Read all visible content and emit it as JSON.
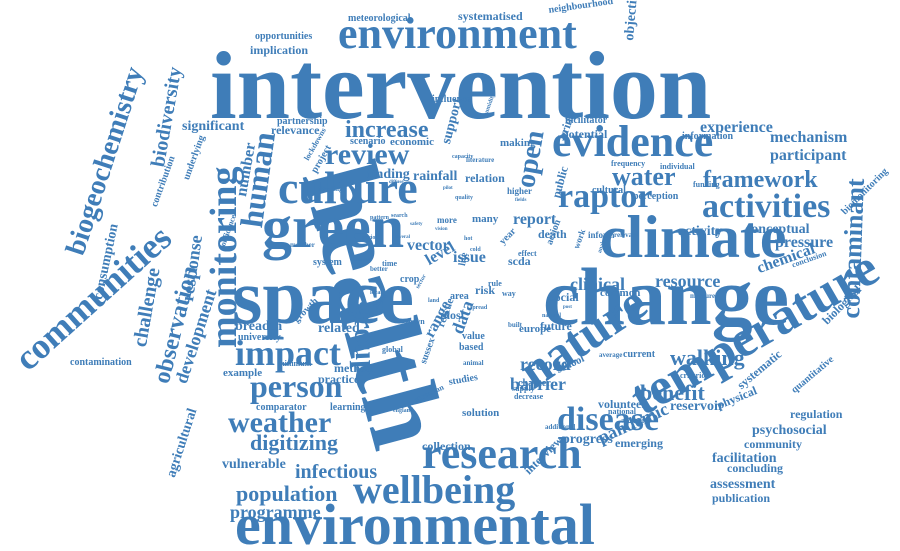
{
  "word_color": "#3f7db8",
  "words": [
    "intervention",
    "health",
    "change",
    "space",
    "environmental",
    "climate",
    "green",
    "environment",
    "evidence",
    "culture",
    "research",
    "nature",
    "temperature",
    "wellbeing",
    "monitoring",
    "communities",
    "biogeochemistry",
    "raptor",
    "activities",
    "disease",
    "weather",
    "impact",
    "person",
    "human",
    "review",
    "group",
    "open",
    "contaminant",
    "framework",
    "water",
    "digitizing",
    "population",
    "programme",
    "biodiversity",
    "observation",
    "challenge",
    "increase",
    "benefit",
    "walking",
    "infectious",
    "experience",
    "mechanism",
    "participant",
    "pressure",
    "chemical",
    "resource",
    "clinical",
    "pandemic",
    "record",
    "barrier",
    "level",
    "issue",
    "vector",
    "rainfall",
    "relation",
    "finding",
    "report",
    "number",
    "response",
    "development",
    "agricultural",
    "consumption",
    "contamination",
    "significant",
    "relevance",
    "implication",
    "opportunities",
    "meteorological",
    "systematised",
    "neighbourhood",
    "objective",
    "influence",
    "partnership",
    "scenario",
    "economic",
    "support",
    "making",
    "facilitator",
    "potential",
    "information",
    "biomonitoring",
    "conceptual",
    "activity",
    "breadth",
    "university",
    "related",
    "method",
    "practice",
    "example",
    "minimum",
    "comparator",
    "learning",
    "vulnerable",
    "collection",
    "progress",
    "emerging",
    "interview",
    "assessment",
    "publication",
    "concluding",
    "facilitation",
    "community",
    "psychosocial",
    "regulation",
    "reservoir",
    "physical",
    "systematic",
    "quantitative",
    "biological",
    "solution",
    "range",
    "data",
    "rescue",
    "sussex",
    "school",
    "chapter",
    "future",
    "volunteer",
    "national",
    "anxieties",
    "criterion",
    "common",
    "social",
    "crop",
    "lockdowns",
    "project",
    "flooding",
    "underlying",
    "contribution",
    "confidence",
    "growth",
    "most",
    "risk",
    "area",
    "rule",
    "way",
    "death",
    "value",
    "based",
    "studies",
    "decrease",
    "supply",
    "europe",
    "european",
    "england",
    "additional",
    "current",
    "average",
    "public",
    "cultural",
    "perception",
    "frequency",
    "individual",
    "funding",
    "measure",
    "conclusion",
    "capacity",
    "humidity",
    "literature",
    "higher",
    "quality",
    "more",
    "many",
    "global",
    "member",
    "better",
    "system",
    "remains",
    "period",
    "several",
    "time",
    "life",
    "local",
    "pattern",
    "phase",
    "down",
    "animal",
    "built",
    "scda",
    "year",
    "effect",
    "inform",
    "relevant",
    "action",
    "work",
    "analysis",
    "bring",
    "search",
    "diffuse",
    "cold",
    "pilot",
    "hot",
    "natural",
    "land",
    "sector",
    "fields",
    "spread",
    "safety",
    "post",
    "vision"
  ]
}
